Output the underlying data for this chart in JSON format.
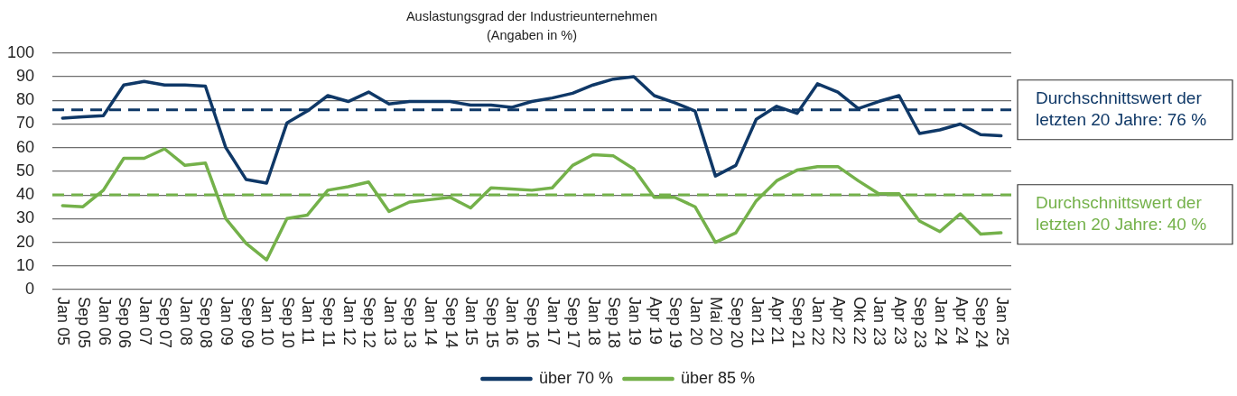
{
  "chart_data": {
    "type": "line",
    "title": "Auslastungsgrad der Industrieunternehmen",
    "subtitle": "(Angaben in %)",
    "categories": [
      "Jan 05",
      "Sep 05",
      "Jan 06",
      "Sep 06",
      "Jan 07",
      "Sep 07",
      "Jan 08",
      "Sep 08",
      "Jan 09",
      "Sep 09",
      "Jan 10",
      "Sep 10",
      "Jan 11",
      "Sep 11",
      "Jan 12",
      "Sep 12",
      "Jan 13",
      "Sep 13",
      "Jan 14",
      "Sep 14",
      "Jan 15",
      "Sep 15",
      "Jan 16",
      "Sep 16",
      "Jan 17",
      "Sep 17",
      "Jan 18",
      "Sep 18",
      "Jan 19",
      "Apr 19",
      "Sep 19",
      "Jan 20",
      "Mai 20",
      "Sep 20",
      "Jan 21",
      "Apr 21",
      "Sep 21",
      "Jan 22",
      "Apr 22",
      "Okt 22",
      "Jan 23",
      "Apr 23",
      "Sep 23",
      "Jan 24",
      "Apr 24",
      "Sep 24",
      "Jan 25"
    ],
    "series": [
      {
        "name": "über 70 %",
        "color": "#0f3867",
        "values": [
          72.5,
          73,
          73.5,
          86.5,
          88,
          86.5,
          86.5,
          86,
          60,
          46.5,
          45,
          70.5,
          75.5,
          82,
          79.5,
          83.5,
          78.5,
          79.5,
          79.5,
          79.5,
          78,
          78,
          77,
          79.5,
          81,
          83,
          86.5,
          89,
          90,
          82,
          79,
          75.5,
          48,
          52.5,
          72,
          77.5,
          74.5,
          87,
          83.5,
          76.5,
          79.5,
          82,
          66,
          67.5,
          70,
          65.5,
          65
        ]
      },
      {
        "name": "über 85 %",
        "color": "#74b14a",
        "values": [
          35.5,
          35,
          42,
          55.5,
          55.5,
          59.5,
          52.5,
          53.5,
          30,
          19.5,
          12.5,
          30,
          31.5,
          42,
          43.5,
          45.5,
          33,
          37,
          38,
          39,
          34.5,
          43,
          42.5,
          42,
          43,
          52.5,
          57,
          56.5,
          51,
          39,
          39,
          35,
          20,
          24,
          37.5,
          46,
          50.5,
          52,
          52,
          46,
          40.5,
          40.5,
          29,
          24.5,
          32,
          23.5,
          24
        ]
      }
    ],
    "ylim": [
      0,
      100
    ],
    "yticks": [
      0,
      10,
      20,
      30,
      40,
      50,
      60,
      70,
      80,
      90,
      100
    ],
    "grid": "y",
    "legend": "bottom",
    "marker": "none",
    "line_style": "solid",
    "ref_lines": [
      {
        "axis": "y",
        "value": 76,
        "label": "Durchschnittswert der letzten 20 Jahre: 76 %",
        "color": "#0f3867",
        "line_style": "dashed"
      },
      {
        "axis": "y",
        "value": 40,
        "label": "Durchschnittswert der letzten 20 Jahre: 40 %",
        "color": "#74b14a",
        "line_style": "dashed"
      }
    ]
  }
}
